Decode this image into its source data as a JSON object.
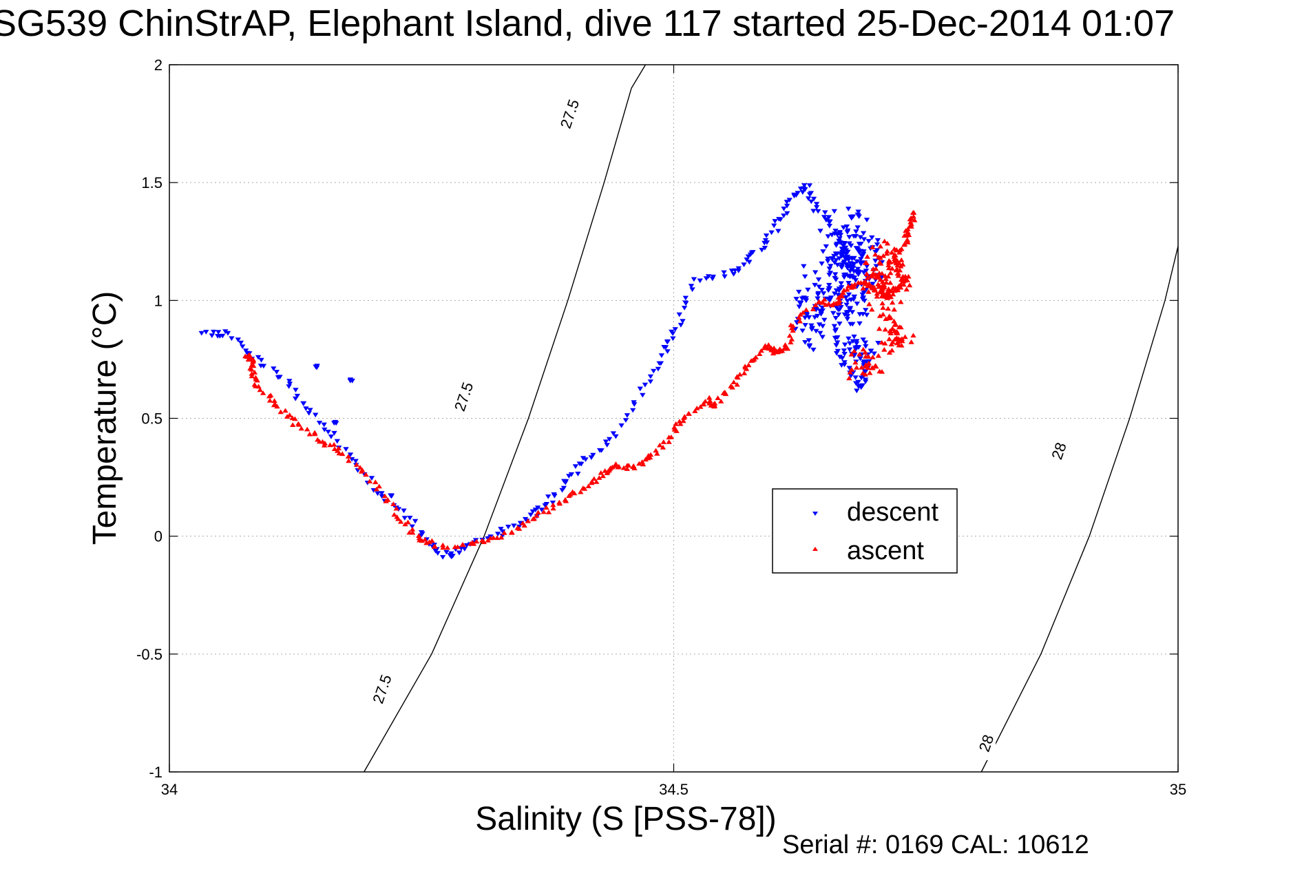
{
  "chart_data": {
    "type": "scatter",
    "title": "SG539 ChinStrAP, Elephant Island, dive 117 started 25-Dec-2014 01:07",
    "xlabel": "Salinity (S [PSS-78])",
    "ylabel": "Temperature (°C)",
    "xlim": [
      34,
      35
    ],
    "ylim": [
      -1,
      2
    ],
    "x_ticks": [
      "34",
      "34.5",
      "35"
    ],
    "y_ticks": [
      "-1",
      "-0.5",
      "0",
      "0.5",
      "1",
      "1.5",
      "2"
    ],
    "grid": true,
    "legend": {
      "placement": "center-right",
      "entries": [
        "descent",
        "ascent"
      ]
    },
    "footer": "Serial #: 0169 CAL: 10612",
    "colors": {
      "descent": "#0000ff",
      "ascent": "#ff0000",
      "contour": "#000000",
      "grid": "#aaaaaa"
    },
    "contours": [
      {
        "label": "27.5",
        "points": [
          [
            34.193,
            -1.0
          ],
          [
            34.26,
            -0.5
          ],
          [
            34.312,
            0.0
          ],
          [
            34.356,
            0.5
          ],
          [
            34.395,
            1.0
          ],
          [
            34.431,
            1.5
          ],
          [
            34.458,
            1.9
          ],
          [
            34.472,
            2.0
          ]
        ]
      },
      {
        "label": "28",
        "points": [
          [
            34.805,
            -1.0
          ],
          [
            34.864,
            -0.5
          ],
          [
            34.912,
            0.0
          ],
          [
            34.952,
            0.5
          ],
          [
            34.987,
            1.0
          ],
          [
            35.0,
            1.23
          ]
        ]
      }
    ],
    "contour_labels": [
      {
        "text": "27.5",
        "x": 34.212,
        "y": -0.65
      },
      {
        "text": "27.5",
        "x": 34.293,
        "y": 0.59
      },
      {
        "text": "27.5",
        "x": 34.398,
        "y": 1.79
      },
      {
        "text": "28",
        "x": 34.811,
        "y": -0.88
      },
      {
        "text": "28",
        "x": 34.883,
        "y": 0.36
      }
    ],
    "series": [
      {
        "name": "descent",
        "marker": "triangle-down",
        "path": [
          [
            34.035,
            0.86
          ],
          [
            34.06,
            0.86
          ],
          [
            34.085,
            0.75
          ],
          [
            34.12,
            0.64
          ],
          [
            34.14,
            0.52
          ],
          [
            34.17,
            0.38
          ],
          [
            34.2,
            0.22
          ],
          [
            34.23,
            0.1
          ],
          [
            34.26,
            -0.03
          ],
          [
            34.275,
            -0.09
          ],
          [
            34.29,
            -0.06
          ],
          [
            34.32,
            0.0
          ],
          [
            34.35,
            0.06
          ],
          [
            34.37,
            0.12
          ],
          [
            34.39,
            0.22
          ],
          [
            34.41,
            0.32
          ],
          [
            34.44,
            0.42
          ],
          [
            34.47,
            0.62
          ],
          [
            34.49,
            0.78
          ],
          [
            34.505,
            0.9
          ],
          [
            34.52,
            1.08
          ],
          [
            34.56,
            1.12
          ],
          [
            34.58,
            1.2
          ],
          [
            34.6,
            1.3
          ],
          [
            34.615,
            1.42
          ],
          [
            34.63,
            1.49
          ],
          [
            34.64,
            1.4
          ],
          [
            34.66,
            1.3
          ],
          [
            34.67,
            1.2
          ],
          [
            34.665,
            1.0
          ],
          [
            34.66,
            0.8
          ],
          [
            34.675,
            0.7
          ],
          [
            34.685,
            0.62
          ],
          [
            34.69,
            0.72
          ],
          [
            34.7,
            0.82
          ]
        ],
        "jitter": 0.008,
        "extra_spots": [
          [
            34.145,
            0.72
          ],
          [
            34.164,
            0.48
          ],
          [
            34.22,
            0.17
          ],
          [
            34.18,
            0.66
          ]
        ],
        "clusters": [
          {
            "center": [
              34.675,
              1.15
            ],
            "spread": [
              0.035,
              0.28
            ],
            "count": 200
          },
          {
            "center": [
              34.64,
              0.95
            ],
            "spread": [
              0.025,
              0.2
            ],
            "count": 60
          },
          {
            "center": [
              34.68,
              0.78
            ],
            "spread": [
              0.015,
              0.08
            ],
            "count": 25
          }
        ]
      },
      {
        "name": "ascent",
        "marker": "triangle-up",
        "path": [
          [
            34.077,
            0.77
          ],
          [
            34.082,
            0.72
          ],
          [
            34.085,
            0.65
          ],
          [
            34.105,
            0.56
          ],
          [
            34.125,
            0.48
          ],
          [
            34.15,
            0.41
          ],
          [
            34.17,
            0.36
          ],
          [
            34.2,
            0.24
          ],
          [
            34.225,
            0.1
          ],
          [
            34.245,
            0.0
          ],
          [
            34.265,
            -0.04
          ],
          [
            34.3,
            -0.04
          ],
          [
            34.33,
            0.0
          ],
          [
            34.36,
            0.07
          ],
          [
            34.385,
            0.14
          ],
          [
            34.41,
            0.2
          ],
          [
            34.43,
            0.27
          ],
          [
            34.44,
            0.3
          ],
          [
            34.46,
            0.29
          ],
          [
            34.48,
            0.34
          ],
          [
            34.5,
            0.44
          ],
          [
            34.51,
            0.51
          ],
          [
            34.535,
            0.58
          ],
          [
            34.54,
            0.55
          ],
          [
            34.56,
            0.65
          ],
          [
            34.575,
            0.73
          ],
          [
            34.595,
            0.81
          ],
          [
            34.6,
            0.78
          ],
          [
            34.61,
            0.79
          ],
          [
            34.62,
            0.9
          ],
          [
            34.645,
            1.0
          ],
          [
            34.66,
            0.98
          ],
          [
            34.67,
            1.05
          ],
          [
            34.69,
            1.08
          ],
          [
            34.705,
            1.02
          ],
          [
            34.72,
            1.05
          ],
          [
            34.73,
            1.08
          ],
          [
            34.725,
            1.1
          ],
          [
            34.72,
            1.18
          ],
          [
            34.73,
            1.26
          ],
          [
            34.735,
            1.33
          ],
          [
            34.74,
            1.38
          ]
        ],
        "jitter": 0.006,
        "extra_spots": [
          [
            34.08,
            0.77
          ],
          [
            34.082,
            0.75
          ]
        ],
        "clusters": [
          {
            "center": [
              34.71,
              1.1
            ],
            "spread": [
              0.025,
              0.18
            ],
            "count": 110
          },
          {
            "center": [
              34.72,
              0.85
            ],
            "spread": [
              0.02,
              0.08
            ],
            "count": 40
          },
          {
            "center": [
              34.69,
              0.73
            ],
            "spread": [
              0.02,
              0.07
            ],
            "count": 30
          }
        ]
      }
    ]
  }
}
